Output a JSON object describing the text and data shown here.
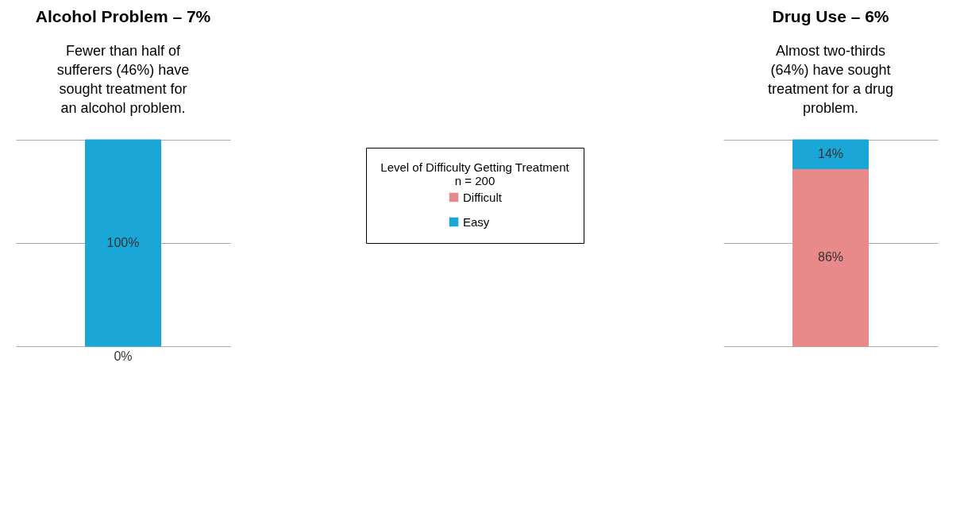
{
  "chart_data": [
    {
      "type": "bar",
      "title": "Alcohol Problem – 7%",
      "annotations": [
        "Fewer than half of sufferers (46%) have sought treatment for an alcohol problem.",
        {
          "text": "0%",
          "y": 0
        }
      ],
      "categories": [
        null
      ],
      "stacked": true,
      "ylim": [
        0,
        100
      ],
      "yticks": [
        {
          "value": 0,
          "label": null
        },
        {
          "value": 50,
          "label": null
        },
        {
          "value": 100,
          "label": null
        }
      ],
      "grid": "y",
      "tick_labels": false,
      "series": [
        {
          "color": "#1aa7d8",
          "values": [
            100
          ],
          "value_labels": [
            "100%"
          ]
        }
      ]
    },
    {
      "type": "bar",
      "title": "Drug Use – 6%",
      "annotations": [
        "Almost two-thirds (64%) have sought treatment for a drug problem.",
        "n = 200"
      ],
      "legend_title": "Level of Difficulty Getting Treatment",
      "legend": "left",
      "categories": [
        null
      ],
      "stacked": true,
      "ylim": [
        0,
        100
      ],
      "yticks": [
        {
          "value": 0,
          "label": null
        },
        {
          "value": 50,
          "label": null
        },
        {
          "value": 100,
          "label": null
        }
      ],
      "grid": "y",
      "tick_labels": false,
      "series": [
        {
          "name": "Difficult",
          "color": "#e8898a",
          "values": [
            86
          ],
          "value_labels": [
            "86%"
          ]
        },
        {
          "name": "Easy",
          "color": "#1aa7d8",
          "values": [
            14
          ],
          "value_labels": [
            "14%"
          ]
        }
      ]
    }
  ]
}
